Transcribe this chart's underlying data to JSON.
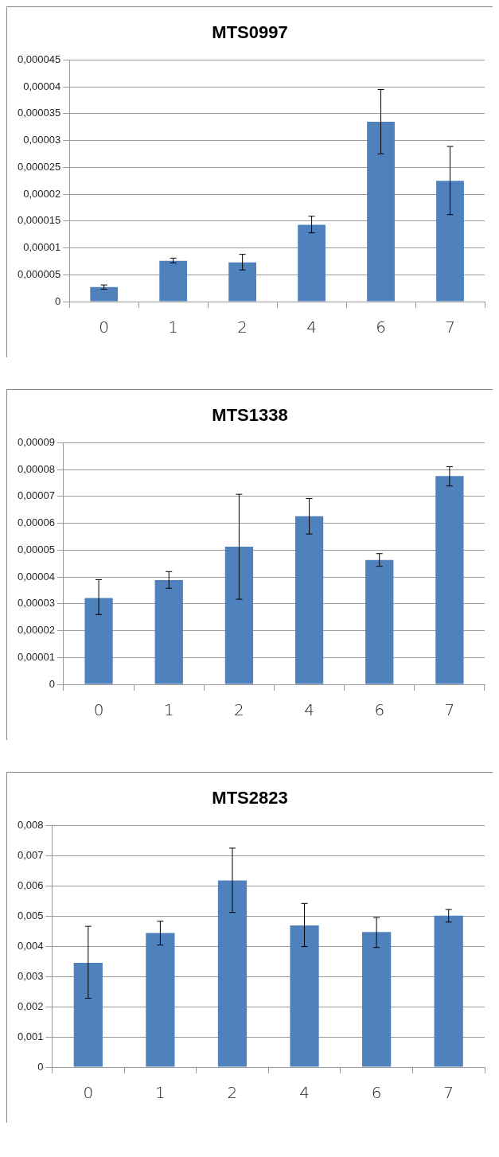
{
  "chart_data": [
    {
      "type": "bar",
      "title": "MTS0997",
      "categories": [
        "0",
        "1",
        "2",
        "4",
        "6",
        "7"
      ],
      "color": "#4f81bd",
      "grid": "y",
      "values": [
        2.7e-06,
        7.6e-06,
        7.3e-06,
        1.43e-05,
        3.35e-05,
        2.25e-05
      ],
      "errors": [
        [
          2.3e-06,
          3.1e-06
        ],
        [
          7.2e-06,
          8.1e-06
        ],
        [
          5.9e-06,
          8.8e-06
        ],
        [
          1.28e-05,
          1.59e-05
        ],
        [
          2.75e-05,
          3.95e-05
        ],
        [
          1.62e-05,
          2.89e-05
        ]
      ],
      "ylim": [
        0,
        4.5e-05
      ],
      "yticks": [
        {
          "value": 0,
          "label": "0"
        },
        {
          "value": 5e-06,
          "label": "0,000005"
        },
        {
          "value": 1e-05,
          "label": "0,00001"
        },
        {
          "value": 1.5e-05,
          "label": "0,000015"
        },
        {
          "value": 2e-05,
          "label": "0,00002"
        },
        {
          "value": 2.5e-05,
          "label": "0,000025"
        },
        {
          "value": 3e-05,
          "label": "0,00003"
        },
        {
          "value": 3.5e-05,
          "label": "0,000035"
        },
        {
          "value": 4e-05,
          "label": "0,00004"
        },
        {
          "value": 4.5e-05,
          "label": "0,000045"
        }
      ]
    },
    {
      "type": "bar",
      "title": "MTS1338",
      "categories": [
        "0",
        "1",
        "2",
        "4",
        "6",
        "7"
      ],
      "color": "#4f81bd",
      "grid": "y",
      "values": [
        3.22e-05,
        3.88e-05,
        5.13e-05,
        6.26e-05,
        4.63e-05,
        7.76e-05
      ],
      "errors": [
        [
          2.6e-05,
          3.9e-05
        ],
        [
          3.58e-05,
          4.2e-05
        ],
        [
          3.17e-05,
          7.08e-05
        ],
        [
          5.6e-05,
          6.92e-05
        ],
        [
          4.4e-05,
          4.87e-05
        ],
        [
          7.39e-05,
          8.11e-05
        ]
      ],
      "ylim": [
        0,
        9e-05
      ],
      "yticks": [
        {
          "value": 0,
          "label": "0"
        },
        {
          "value": 1e-05,
          "label": "0,00001"
        },
        {
          "value": 2e-05,
          "label": "0,00002"
        },
        {
          "value": 3e-05,
          "label": "0,00003"
        },
        {
          "value": 4e-05,
          "label": "0,00004"
        },
        {
          "value": 5e-05,
          "label": "0,00005"
        },
        {
          "value": 6e-05,
          "label": "0,00006"
        },
        {
          "value": 7e-05,
          "label": "0,00007"
        },
        {
          "value": 8e-05,
          "label": "0,00008"
        },
        {
          "value": 9e-05,
          "label": "0,00009"
        }
      ]
    },
    {
      "type": "bar",
      "title": "MTS2823",
      "categories": [
        "0",
        "1",
        "2",
        "4",
        "6",
        "7"
      ],
      "color": "#4f81bd",
      "grid": "y",
      "values": [
        0.00345,
        0.00444,
        0.00618,
        0.00469,
        0.00447,
        0.00501
      ],
      "errors": [
        [
          0.00228,
          0.00466
        ],
        [
          0.00404,
          0.00483
        ],
        [
          0.00512,
          0.00725
        ],
        [
          0.00399,
          0.00542
        ],
        [
          0.00396,
          0.00495
        ],
        [
          0.0048,
          0.00522
        ]
      ],
      "ylim": [
        0,
        0.008
      ],
      "yticks": [
        {
          "value": 0,
          "label": "0"
        },
        {
          "value": 0.001,
          "label": "0,001"
        },
        {
          "value": 0.002,
          "label": "0,002"
        },
        {
          "value": 0.003,
          "label": "0,003"
        },
        {
          "value": 0.004,
          "label": "0,004"
        },
        {
          "value": 0.005,
          "label": "0,005"
        },
        {
          "value": 0.006,
          "label": "0,006"
        },
        {
          "value": 0.007,
          "label": "0,007"
        },
        {
          "value": 0.008,
          "label": "0,008"
        }
      ]
    }
  ]
}
